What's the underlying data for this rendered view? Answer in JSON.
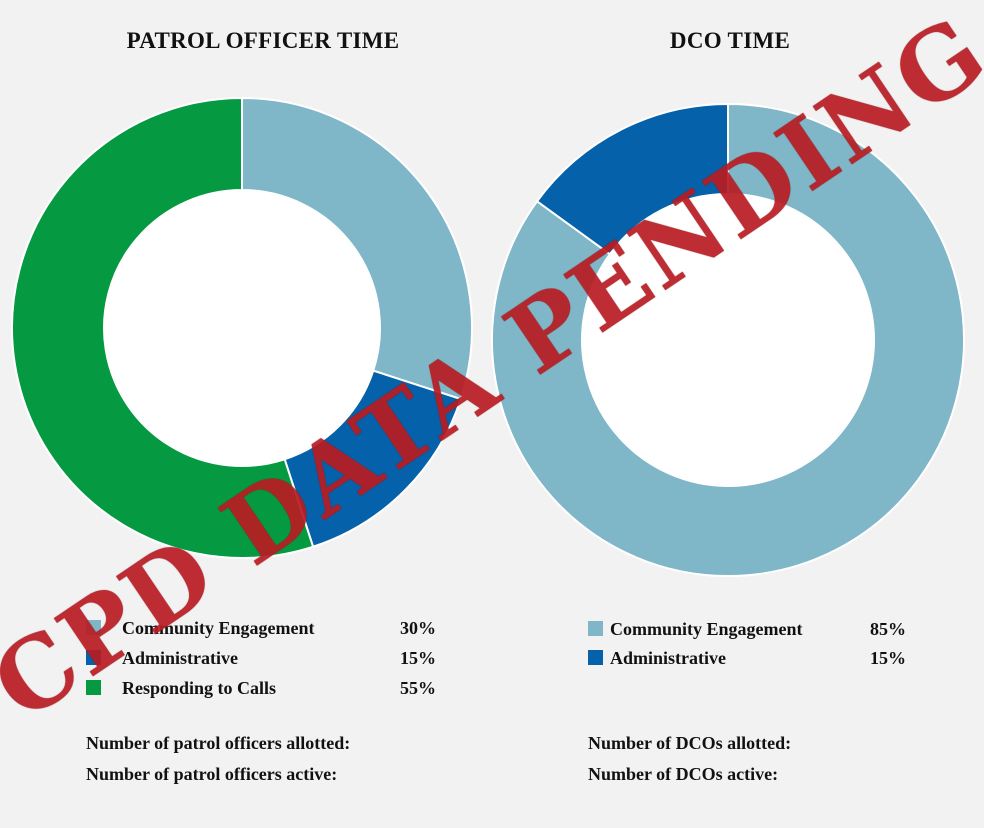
{
  "colors": {
    "community": "#7fb6c8",
    "administrative": "#0561a9",
    "responding": "#059a41",
    "background": "#f2f2f2",
    "stamp": "#b81c22"
  },
  "chart_data": [
    {
      "type": "pie",
      "title": "PATROL OFFICER TIME",
      "categories": [
        "Community Engagement",
        "Administrative",
        "Responding to Calls"
      ],
      "values": [
        30,
        15,
        55
      ],
      "value_labels": [
        "30%",
        "15%",
        "55%"
      ]
    },
    {
      "type": "pie",
      "title": "DCO TIME",
      "categories": [
        "Community Engagement",
        "Administrative"
      ],
      "values": [
        85,
        15
      ],
      "value_labels": [
        "85%",
        "15%"
      ]
    }
  ],
  "info": {
    "left": [
      "Number of patrol officers allotted:",
      "Number of patrol officers active:"
    ],
    "right": [
      "Number of DCOs allotted:",
      "Number of DCOs active:"
    ]
  },
  "stamp": {
    "text": "CPD DATA PENDING"
  }
}
